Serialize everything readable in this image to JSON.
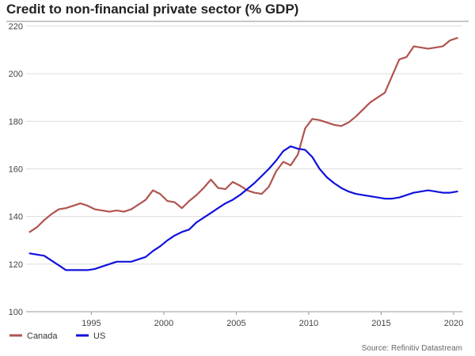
{
  "chart_data": {
    "type": "line",
    "title": "Credit to non-financial private sector (% GDP)",
    "xlabel": "",
    "ylabel": "",
    "xlim": [
      1990.5,
      2020.6
    ],
    "ylim": [
      100,
      220
    ],
    "x_ticks": [
      1995,
      2000,
      2005,
      2010,
      2015,
      2020
    ],
    "x_tick_labels": [
      "1995",
      "2000",
      "2005",
      "2010",
      "2015",
      "2020"
    ],
    "y_ticks": [
      100,
      120,
      140,
      160,
      180,
      200,
      220
    ],
    "y_tick_labels": [
      "100",
      "120",
      "140",
      "160",
      "180",
      "200",
      "220"
    ],
    "grid": "horizontal",
    "legend_position": "bottom-left",
    "source": "Source: Refinitiv Datastream",
    "series": [
      {
        "name": "Canada",
        "color": "#b0544f",
        "x": [
          1990.75,
          1991.25,
          1991.75,
          1992.25,
          1992.75,
          1993.25,
          1993.75,
          1994.25,
          1994.75,
          1995.25,
          1995.75,
          1996.25,
          1996.75,
          1997.25,
          1997.75,
          1998.25,
          1998.75,
          1999.25,
          1999.75,
          2000.25,
          2000.75,
          2001.25,
          2001.75,
          2002.25,
          2002.75,
          2003.25,
          2003.75,
          2004.25,
          2004.75,
          2005.25,
          2005.75,
          2006.25,
          2006.75,
          2007.25,
          2007.75,
          2008.25,
          2008.75,
          2009.25,
          2009.75,
          2010.25,
          2010.75,
          2011.25,
          2011.75,
          2012.25,
          2012.75,
          2013.25,
          2013.75,
          2014.25,
          2014.75,
          2015.25,
          2015.75,
          2016.25,
          2016.75,
          2017.25,
          2017.75,
          2018.25,
          2018.75,
          2019.25,
          2019.75,
          2020.25
        ],
        "values": [
          133.5,
          135.5,
          138.5,
          141,
          143,
          143.5,
          144.5,
          145.5,
          144.5,
          143,
          142.5,
          142,
          142.5,
          142,
          143,
          145,
          147,
          151,
          149.5,
          146.5,
          146,
          143.5,
          146.5,
          149,
          152,
          155.5,
          152,
          151.5,
          154.5,
          153,
          151,
          150,
          149.5,
          152.5,
          159,
          163,
          161.5,
          166,
          177,
          181,
          180.5,
          179.5,
          178.5,
          178,
          179.5,
          182,
          185,
          188,
          190,
          192,
          199,
          206,
          207,
          211.5,
          211,
          210.5,
          211,
          211.5,
          214,
          215
        ]
      },
      {
        "name": "US",
        "color": "#1111dd",
        "x": [
          1990.75,
          1991.25,
          1991.75,
          1992.25,
          1992.75,
          1993.25,
          1993.75,
          1994.25,
          1994.75,
          1995.25,
          1995.75,
          1996.25,
          1996.75,
          1997.25,
          1997.75,
          1998.25,
          1998.75,
          1999.25,
          1999.75,
          2000.25,
          2000.75,
          2001.25,
          2001.75,
          2002.25,
          2002.75,
          2003.25,
          2003.75,
          2004.25,
          2004.75,
          2005.25,
          2005.75,
          2006.25,
          2006.75,
          2007.25,
          2007.75,
          2008.25,
          2008.75,
          2009.25,
          2009.75,
          2010.25,
          2010.75,
          2011.25,
          2011.75,
          2012.25,
          2012.75,
          2013.25,
          2013.75,
          2014.25,
          2014.75,
          2015.25,
          2015.75,
          2016.25,
          2016.75,
          2017.25,
          2017.75,
          2018.25,
          2018.75,
          2019.25,
          2019.75,
          2020.25
        ],
        "values": [
          124.5,
          124,
          123.5,
          121.5,
          119.5,
          117.5,
          117.5,
          117.5,
          117.5,
          118,
          119,
          120,
          121,
          121,
          121,
          122,
          123,
          125.5,
          127.5,
          130,
          132,
          133.5,
          134.5,
          137.5,
          139.5,
          141.5,
          143.5,
          145.5,
          147,
          149,
          151.5,
          154,
          157,
          160,
          163.5,
          167.5,
          169.5,
          168.5,
          168,
          165,
          160,
          156.5,
          154,
          152,
          150.5,
          149.5,
          149,
          148.5,
          148,
          147.5,
          147.5,
          148,
          149,
          150,
          150.5,
          151,
          150.5,
          150,
          150,
          150.5
        ]
      }
    ]
  }
}
